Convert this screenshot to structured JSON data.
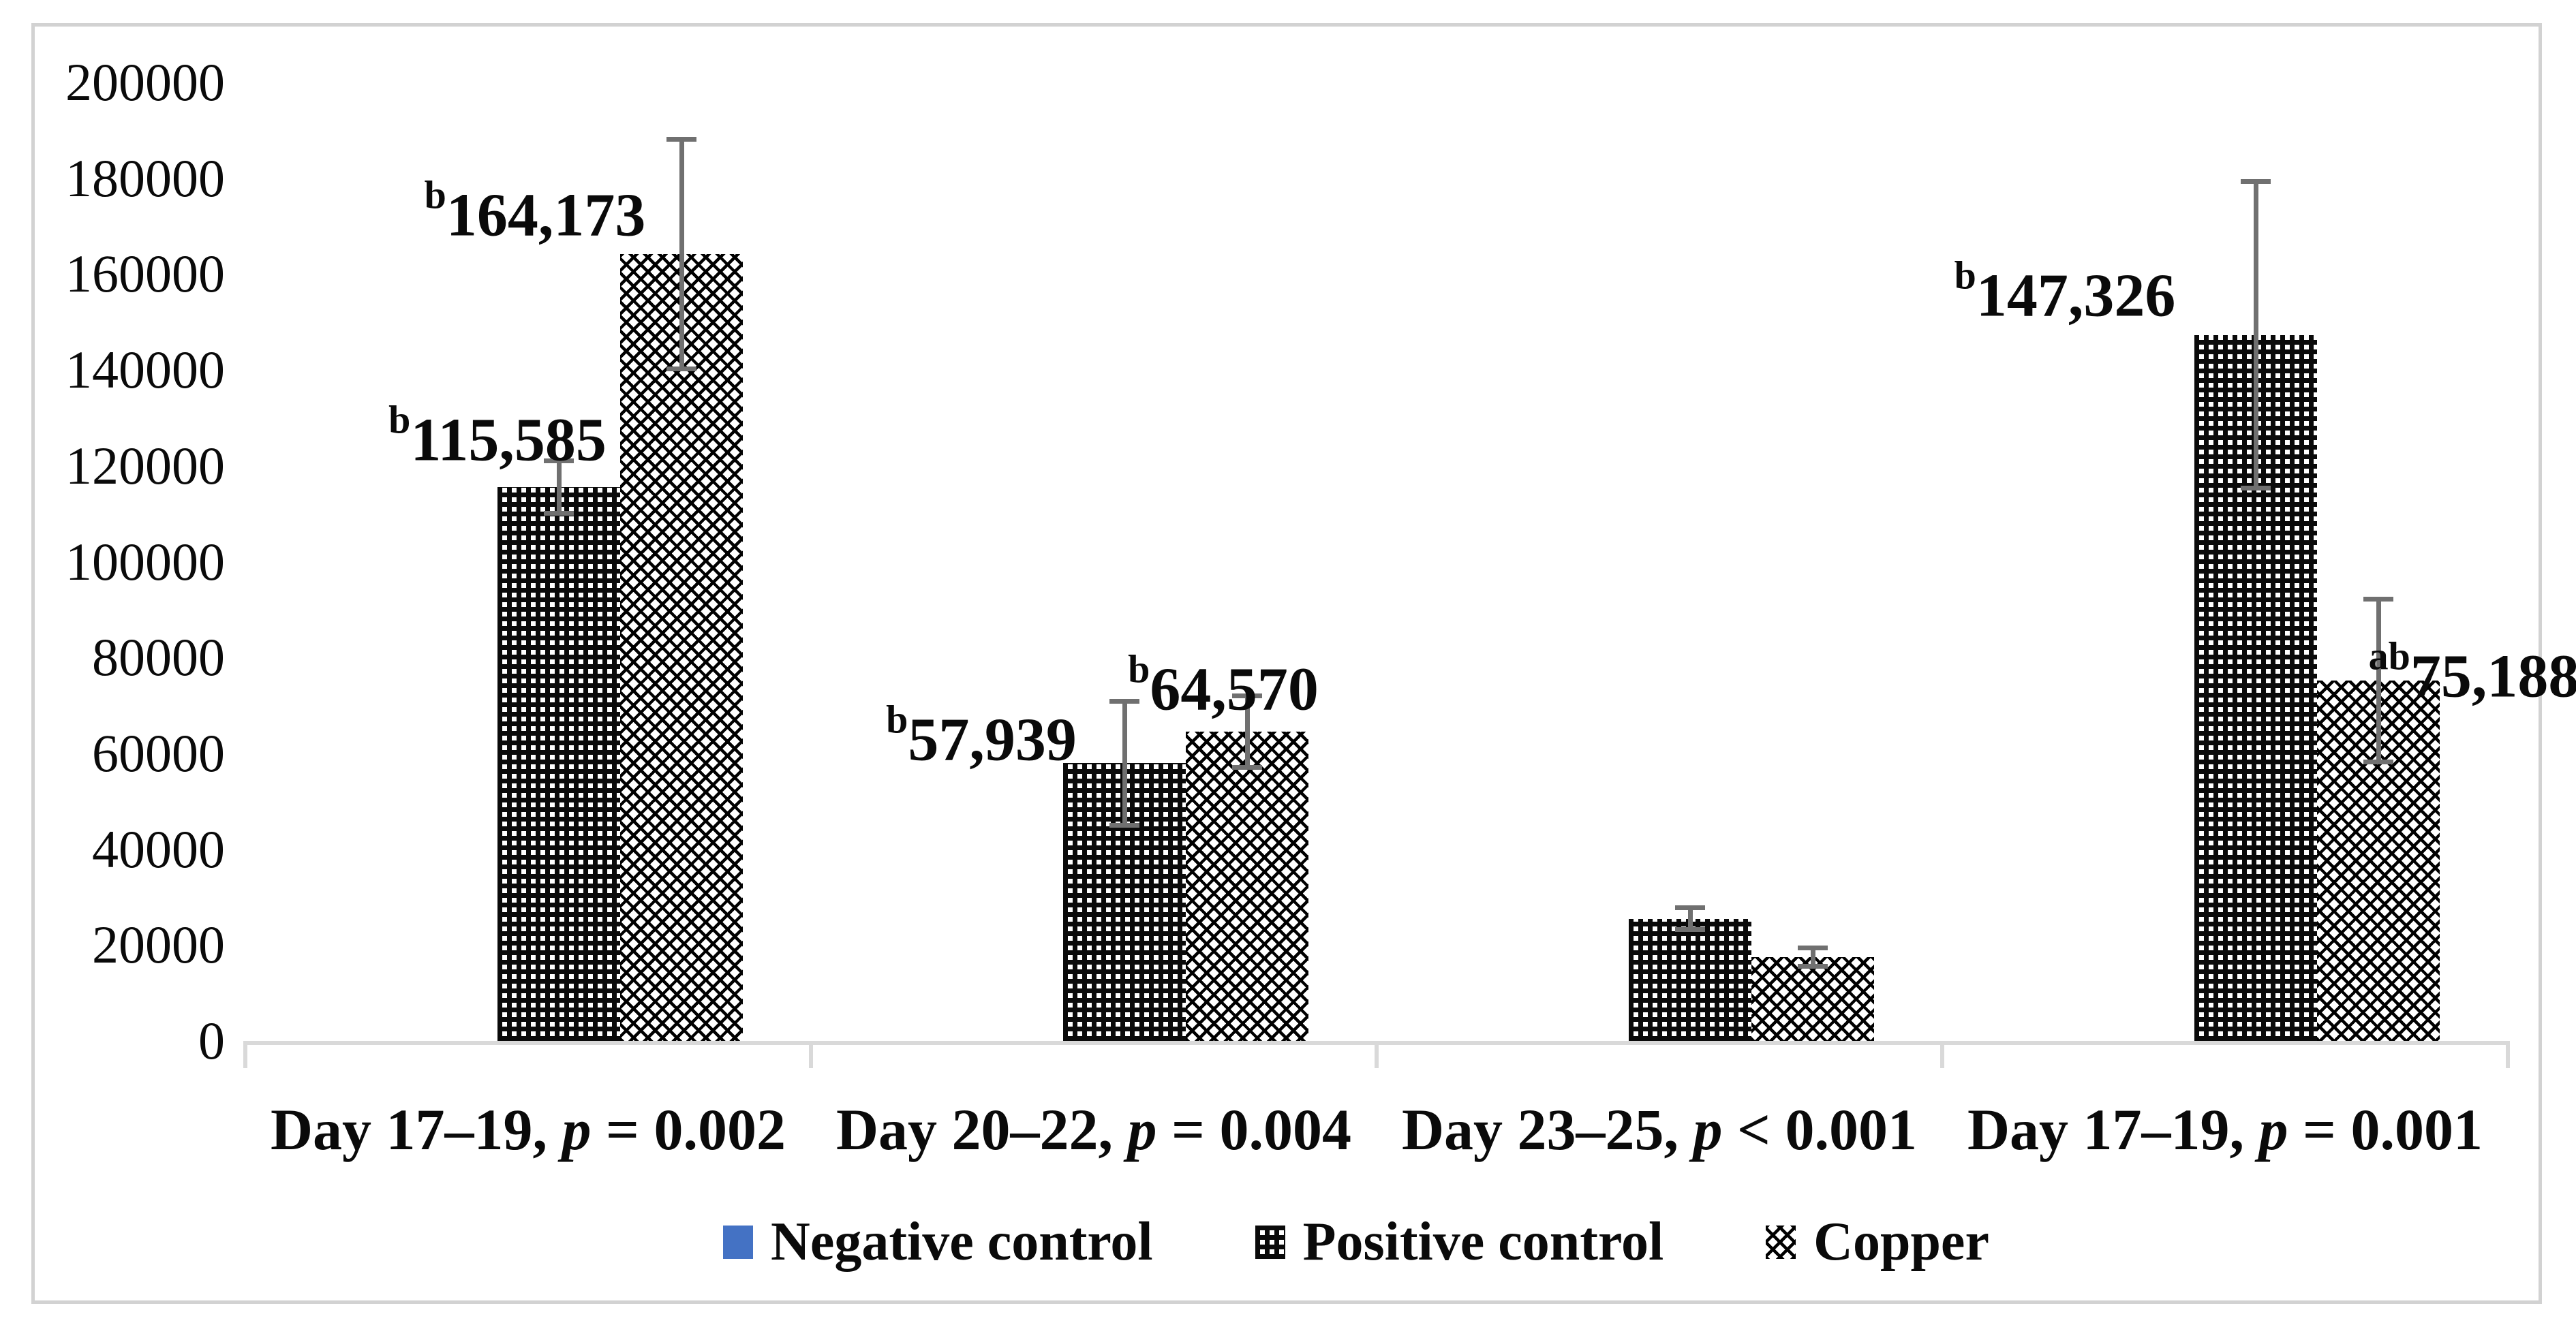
{
  "figure": {
    "background_color": "#ffffff",
    "frame_color": "#d2d2d2",
    "axis_line_color": "#d9d9d9",
    "error_bar_color": "#707070"
  },
  "chart_data": {
    "type": "bar",
    "title": "",
    "xlabel": "",
    "ylabel": "",
    "ylim": [
      0,
      200000
    ],
    "ytick_step": 20000,
    "ytick_labels": [
      "0",
      "20000",
      "40000",
      "60000",
      "80000",
      "100000",
      "120000",
      "140000",
      "160000",
      "180000",
      "200000"
    ],
    "grid": false,
    "legend_position": "bottom",
    "categories": [
      {
        "label": "Day 17–19, p = 0.002",
        "prefix": "Day 17–19,",
        "p_symbol": "p",
        "p_rest": "= 0.002"
      },
      {
        "label": "Day 20–22, p = 0.004",
        "prefix": "Day 20–22,",
        "p_symbol": "p",
        "p_rest": "= 0.004"
      },
      {
        "label": "Day 23–25, p < 0.001",
        "prefix": "Day 23–25,",
        "p_symbol": "p",
        "p_rest": "< 0.001"
      },
      {
        "label": "Day 17–19, p = 0.001",
        "prefix": "Day 17–19,",
        "p_symbol": "p",
        "p_rest": "= 0.001"
      }
    ],
    "series": [
      {
        "name": "Negative control",
        "pattern": "solid",
        "color": "#4472C4",
        "values": [
          0,
          0,
          0,
          0
        ],
        "errors": [
          0,
          0,
          0,
          0
        ],
        "labels": [
          null,
          null,
          null,
          null
        ]
      },
      {
        "name": "Positive control",
        "pattern": "white-dot-grid-on-black",
        "color": "#0a0a0a",
        "values": [
          115585,
          57939,
          25500,
          147326
        ],
        "errors": [
          5500,
          13000,
          2300,
          32000
        ],
        "labels": [
          {
            "sup": "b",
            "text": "115,585",
            "dx": -90,
            "dy": -75
          },
          {
            "sup": "b",
            "text": "57,939",
            "dx": -210,
            "dy": -40
          },
          null,
          {
            "sup": "b",
            "text": "147,326",
            "dx": -280,
            "dy": -64
          }
        ]
      },
      {
        "name": "Copper",
        "pattern": "black-diagonal-crosshatch-on-white",
        "color": "#0a0a0a",
        "values": [
          164173,
          64570,
          17500,
          75188
        ],
        "errors": [
          24000,
          7500,
          2000,
          17000
        ],
        "labels": [
          {
            "sup": "b",
            "text": "164,173",
            "dx": -215,
            "dy": -63
          },
          {
            "sup": "b",
            "text": "64,570",
            "dx": -35,
            "dy": -68
          },
          null,
          {
            "sup": "ab",
            "text": "75,188",
            "dx": 140,
            "dy": -12
          }
        ]
      }
    ]
  }
}
